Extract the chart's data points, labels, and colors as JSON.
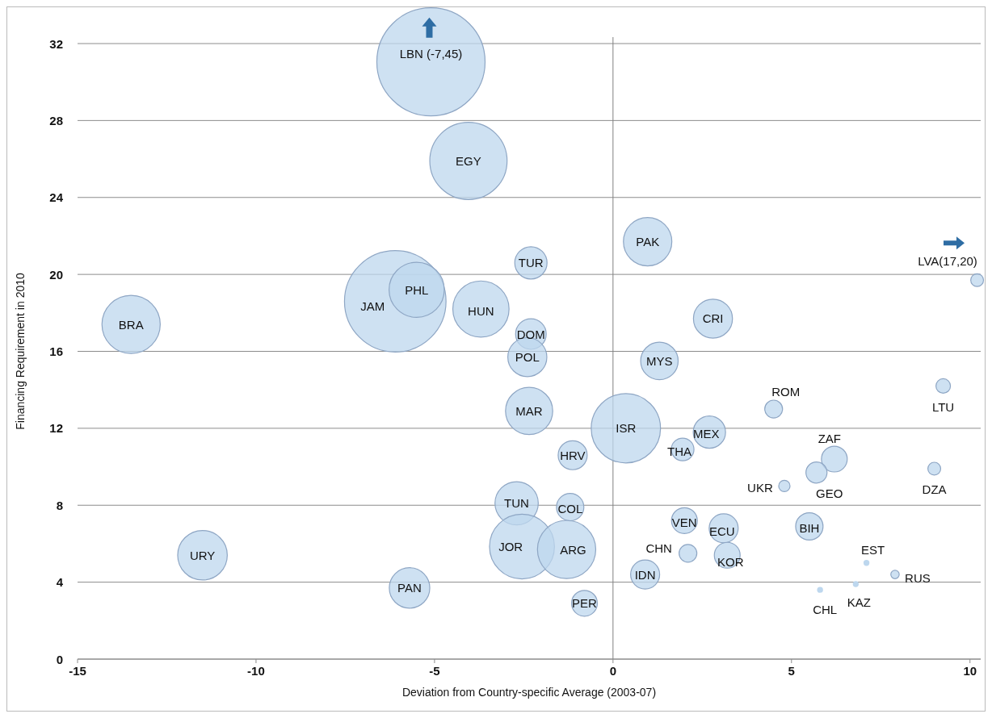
{
  "chart_data": {
    "type": "bubble",
    "xlabel": "Deviation from Country-specific Average (2003-07)",
    "ylabel": "Financing Requirement in 2010",
    "xlim": [
      -15,
      10.3
    ],
    "xticks": [
      -15,
      -10,
      -5,
      0,
      5,
      10
    ],
    "ylim": [
      0,
      32
    ],
    "yticks": [
      0,
      4,
      8,
      12,
      16,
      20,
      24,
      28,
      32
    ],
    "grid": "y",
    "marker": "circle",
    "ref_lines": [
      {
        "axis": "x",
        "value": 0,
        "color": "#808080"
      }
    ],
    "series": [
      {
        "name": "LBN (-7,45)",
        "color": "#bdd7ee",
        "x": [
          -5.1
        ],
        "values": [
          31.05
        ],
        "sizes": [
          1
        ]
      },
      {
        "name": "EGY",
        "color": "#bdd7ee",
        "x": [
          -4.05
        ],
        "values": [
          25.9
        ],
        "sizes": [
          0.51
        ]
      },
      {
        "name": "PAK",
        "color": "#bdd7ee",
        "x": [
          0.97
        ],
        "values": [
          21.7
        ],
        "sizes": [
          0.2
        ]
      },
      {
        "name": "TUR",
        "color": "#bdd7ee",
        "x": [
          -2.3
        ],
        "values": [
          20.6
        ],
        "sizes": [
          0.089
        ]
      },
      {
        "name": "LVA(17,20)",
        "color": "#bdd7ee",
        "x": [
          10.2
        ],
        "values": [
          19.7
        ],
        "sizes": [
          0.014
        ]
      },
      {
        "name": "JAM",
        "color": "#bdd7ee",
        "x": [
          -6.1
        ],
        "values": [
          18.6
        ],
        "sizes": [
          0.88
        ]
      },
      {
        "name": "PHL",
        "color": "#bdd7ee",
        "x": [
          -5.5
        ],
        "values": [
          19.2
        ],
        "sizes": [
          0.26
        ]
      },
      {
        "name": "BRA",
        "color": "#bdd7ee",
        "x": [
          -13.5
        ],
        "values": [
          17.4
        ],
        "sizes": [
          0.29
        ]
      },
      {
        "name": "HUN",
        "color": "#bdd7ee",
        "x": [
          -3.7
        ],
        "values": [
          18.2
        ],
        "sizes": [
          0.27
        ]
      },
      {
        "name": "CRI",
        "color": "#bdd7ee",
        "x": [
          2.8
        ],
        "values": [
          17.7
        ],
        "sizes": [
          0.13
        ]
      },
      {
        "name": "DOM",
        "color": "#bdd7ee",
        "x": [
          -2.3
        ],
        "values": [
          16.9
        ],
        "sizes": [
          0.08
        ]
      },
      {
        "name": "POL",
        "color": "#bdd7ee",
        "x": [
          -2.4
        ],
        "values": [
          15.7
        ],
        "sizes": [
          0.13
        ]
      },
      {
        "name": "MYS",
        "color": "#bdd7ee",
        "x": [
          1.3
        ],
        "values": [
          15.5
        ],
        "sizes": [
          0.12
        ]
      },
      {
        "name": "ROM",
        "color": "#bdd7ee",
        "x": [
          4.5
        ],
        "values": [
          13
        ],
        "sizes": [
          0.027
        ]
      },
      {
        "name": "LTU",
        "color": "#bdd7ee",
        "x": [
          9.25
        ],
        "values": [
          14.2
        ],
        "sizes": [
          0.018
        ]
      },
      {
        "name": "MAR",
        "color": "#bdd7ee",
        "x": [
          -2.35
        ],
        "values": [
          12.9
        ],
        "sizes": [
          0.19
        ]
      },
      {
        "name": "ISR",
        "color": "#bdd7ee",
        "x": [
          0.36
        ],
        "values": [
          12
        ],
        "sizes": [
          0.41
        ]
      },
      {
        "name": "MEX",
        "color": "#bdd7ee",
        "x": [
          2.7
        ],
        "values": [
          11.8
        ],
        "sizes": [
          0.089
        ]
      },
      {
        "name": "THA",
        "color": "#bdd7ee",
        "x": [
          1.95
        ],
        "values": [
          10.9
        ],
        "sizes": [
          0.044
        ]
      },
      {
        "name": "HRV",
        "color": "#bdd7ee",
        "x": [
          -1.13
        ],
        "values": [
          10.6
        ],
        "sizes": [
          0.072
        ]
      },
      {
        "name": "ZAF",
        "color": "#bdd7ee",
        "x": [
          6.2
        ],
        "values": [
          10.4
        ],
        "sizes": [
          0.057
        ]
      },
      {
        "name": "GEO",
        "color": "#bdd7ee",
        "x": [
          5.7
        ],
        "values": [
          9.7
        ],
        "sizes": [
          0.038
        ]
      },
      {
        "name": "DZA",
        "color": "#bdd7ee",
        "x": [
          9.0
        ],
        "values": [
          9.9
        ],
        "sizes": [
          0.014
        ]
      },
      {
        "name": "UKR",
        "color": "#bdd7ee",
        "x": [
          4.8
        ],
        "values": [
          9
        ],
        "sizes": [
          0.011
        ]
      },
      {
        "name": "TUN",
        "color": "#bdd7ee",
        "x": [
          -2.7
        ],
        "values": [
          8.1
        ],
        "sizes": [
          0.16
        ]
      },
      {
        "name": "COL",
        "color": "#bdd7ee",
        "x": [
          -1.2
        ],
        "values": [
          7.9
        ],
        "sizes": [
          0.064
        ]
      },
      {
        "name": "VEN",
        "color": "#bdd7ee",
        "x": [
          2.0
        ],
        "values": [
          7.2
        ],
        "sizes": [
          0.057
        ]
      },
      {
        "name": "ECU",
        "color": "#bdd7ee",
        "x": [
          3.1
        ],
        "values": [
          6.8
        ],
        "sizes": [
          0.072
        ]
      },
      {
        "name": "BIH",
        "color": "#bdd7ee",
        "x": [
          5.5
        ],
        "values": [
          6.9
        ],
        "sizes": [
          0.064
        ]
      },
      {
        "name": "JOR",
        "color": "#bdd7ee",
        "x": [
          -2.55
        ],
        "values": [
          5.85
        ],
        "sizes": [
          0.36
        ]
      },
      {
        "name": "ARG",
        "color": "#bdd7ee",
        "x": [
          -1.3
        ],
        "values": [
          5.7
        ],
        "sizes": [
          0.29
        ]
      },
      {
        "name": "CHN",
        "color": "#bdd7ee",
        "x": [
          2.1
        ],
        "values": [
          5.5
        ],
        "sizes": [
          0.027
        ]
      },
      {
        "name": "KOR",
        "color": "#bdd7ee",
        "x": [
          3.2
        ],
        "values": [
          5.4
        ],
        "sizes": [
          0.057
        ]
      },
      {
        "name": "IDN",
        "color": "#bdd7ee",
        "x": [
          0.9
        ],
        "values": [
          4.4
        ],
        "sizes": [
          0.072
        ]
      },
      {
        "name": "EST",
        "color": "#bdd7ee",
        "x": [
          7.1
        ],
        "values": [
          5
        ],
        "sizes": [
          0.003
        ]
      },
      {
        "name": "RUS",
        "color": "#bdd7ee",
        "x": [
          7.9
        ],
        "values": [
          4.4
        ],
        "sizes": [
          0.006
        ]
      },
      {
        "name": "KAZ",
        "color": "#bdd7ee",
        "x": [
          6.8
        ],
        "values": [
          3.9
        ],
        "sizes": [
          0.003
        ]
      },
      {
        "name": "CHL",
        "color": "#bdd7ee",
        "x": [
          5.8
        ],
        "values": [
          3.6
        ],
        "sizes": [
          0.003
        ]
      },
      {
        "name": "PER",
        "color": "#bdd7ee",
        "x": [
          -0.8
        ],
        "values": [
          2.9
        ],
        "sizes": [
          0.057
        ]
      },
      {
        "name": "URY",
        "color": "#bdd7ee",
        "x": [
          -11.5
        ],
        "values": [
          5.4
        ],
        "sizes": [
          0.21
        ]
      },
      {
        "name": "PAN",
        "color": "#bdd7ee",
        "x": [
          -5.7
        ],
        "values": [
          3.7
        ],
        "sizes": [
          0.14
        ]
      }
    ]
  }
}
